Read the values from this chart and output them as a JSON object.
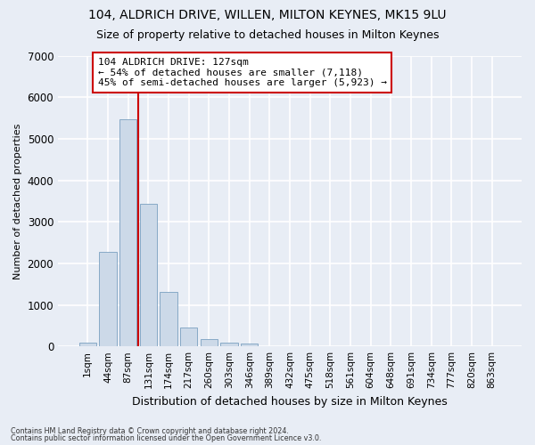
{
  "title": "104, ALDRICH DRIVE, WILLEN, MILTON KEYNES, MK15 9LU",
  "subtitle": "Size of property relative to detached houses in Milton Keynes",
  "xlabel": "Distribution of detached houses by size in Milton Keynes",
  "ylabel": "Number of detached properties",
  "footnote1": "Contains HM Land Registry data © Crown copyright and database right 2024.",
  "footnote2": "Contains public sector information licensed under the Open Government Licence v3.0.",
  "bar_labels": [
    "1sqm",
    "44sqm",
    "87sqm",
    "131sqm",
    "174sqm",
    "217sqm",
    "260sqm",
    "303sqm",
    "346sqm",
    "389sqm",
    "432sqm",
    "475sqm",
    "518sqm",
    "561sqm",
    "604sqm",
    "648sqm",
    "691sqm",
    "734sqm",
    "777sqm",
    "820sqm",
    "863sqm"
  ],
  "bar_values": [
    80,
    2280,
    5470,
    3430,
    1310,
    450,
    170,
    100,
    70,
    0,
    0,
    0,
    0,
    0,
    0,
    0,
    0,
    0,
    0,
    0,
    0
  ],
  "bar_color": "#ccd9e8",
  "bar_edge_color": "#7aa0c0",
  "vline_x": 2.5,
  "vline_color": "#cc0000",
  "annotation_text": "104 ALDRICH DRIVE: 127sqm\n← 54% of detached houses are smaller (7,118)\n45% of semi-detached houses are larger (5,923) →",
  "annotation_box_color": "#ffffff",
  "annotation_box_edge_color": "#cc0000",
  "ylim": [
    0,
    7000
  ],
  "yticks": [
    0,
    1000,
    2000,
    3000,
    4000,
    5000,
    6000,
    7000
  ],
  "bg_color": "#e8edf5",
  "plot_bg_color": "#e8edf5",
  "grid_color": "#ffffff",
  "title_fontsize": 10,
  "subtitle_fontsize": 9,
  "ylabel_fontsize": 8,
  "xlabel_fontsize": 9
}
